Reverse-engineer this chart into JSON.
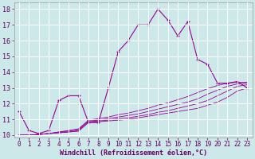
{
  "xlabel": "Windchill (Refroidissement éolien,°C)",
  "bg_color": "#cce8e8",
  "grid_color": "#ffffff",
  "line_color": "#990099",
  "x_values": [
    0,
    1,
    2,
    3,
    4,
    5,
    6,
    7,
    8,
    9,
    10,
    11,
    12,
    13,
    14,
    15,
    16,
    17,
    18,
    19,
    20,
    21,
    22,
    23
  ],
  "y_main": [
    11.5,
    10.3,
    10.1,
    10.3,
    12.2,
    12.5,
    12.5,
    10.8,
    10.8,
    13.0,
    15.3,
    16.0,
    17.0,
    17.0,
    18.0,
    17.3,
    16.3,
    17.2,
    14.8,
    14.5,
    13.3,
    13.3,
    13.4,
    13.0
  ],
  "y_ref1": [
    10.0,
    10.0,
    10.05,
    10.1,
    10.15,
    10.2,
    10.25,
    10.8,
    10.85,
    10.9,
    10.95,
    11.0,
    11.1,
    11.2,
    11.3,
    11.4,
    11.5,
    11.6,
    11.7,
    11.9,
    12.1,
    12.4,
    12.8,
    13.0
  ],
  "y_ref2": [
    10.0,
    10.0,
    10.05,
    10.1,
    10.15,
    10.2,
    10.3,
    10.85,
    10.9,
    10.95,
    11.05,
    11.1,
    11.2,
    11.3,
    11.45,
    11.55,
    11.7,
    11.85,
    12.0,
    12.2,
    12.5,
    12.8,
    13.1,
    13.2
  ],
  "y_ref3": [
    10.0,
    10.0,
    10.05,
    10.1,
    10.2,
    10.25,
    10.35,
    10.9,
    10.95,
    11.05,
    11.15,
    11.25,
    11.35,
    11.5,
    11.65,
    11.8,
    11.95,
    12.1,
    12.3,
    12.6,
    12.85,
    13.1,
    13.25,
    13.3
  ],
  "y_ref4": [
    10.0,
    10.0,
    10.05,
    10.1,
    10.2,
    10.3,
    10.4,
    10.95,
    11.05,
    11.15,
    11.3,
    11.4,
    11.55,
    11.7,
    11.9,
    12.05,
    12.25,
    12.45,
    12.7,
    12.95,
    13.15,
    13.3,
    13.35,
    13.35
  ],
  "ylim": [
    9.85,
    18.4
  ],
  "yticks": [
    10,
    11,
    12,
    13,
    14,
    15,
    16,
    17,
    18
  ],
  "xticks": [
    0,
    1,
    2,
    3,
    4,
    5,
    6,
    7,
    8,
    9,
    10,
    11,
    12,
    13,
    14,
    15,
    16,
    17,
    18,
    19,
    20,
    21,
    22,
    23
  ]
}
